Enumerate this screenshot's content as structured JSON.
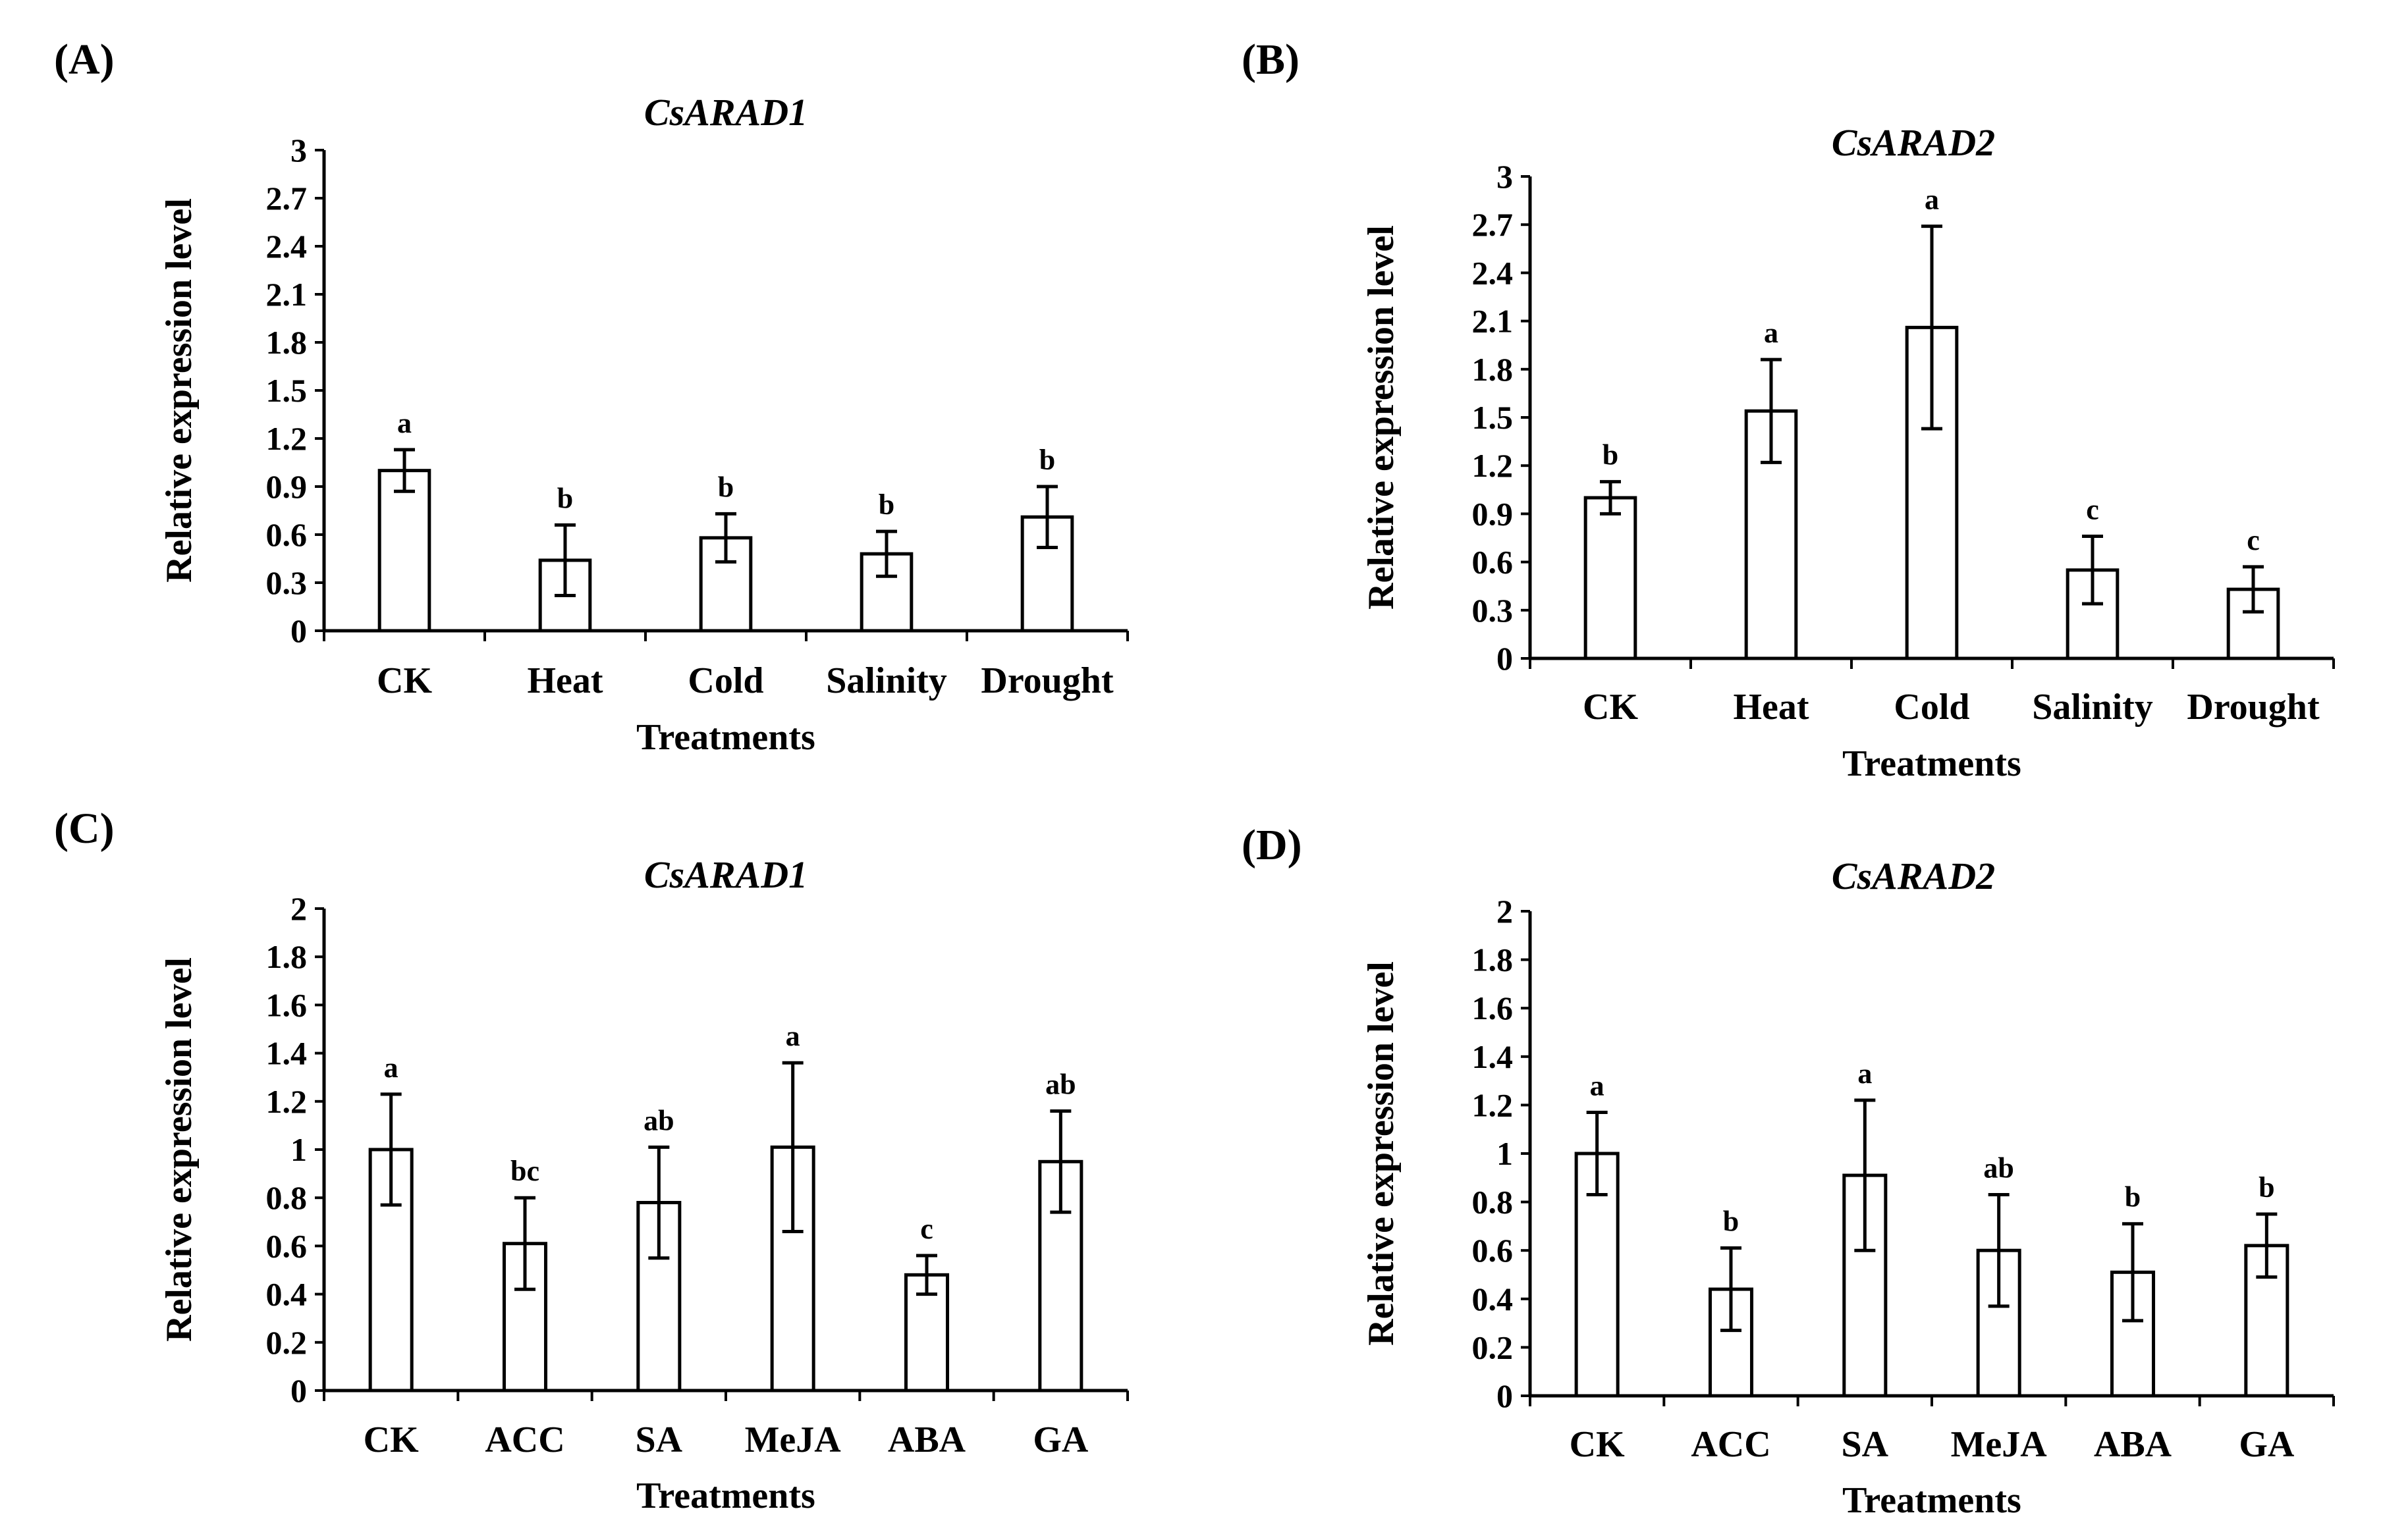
{
  "chart_data": [
    {
      "panel": "(A)",
      "type": "bar",
      "title": "CsARAD1",
      "xlabel": "Treatments",
      "ylabel": "Relative expression level",
      "categories": [
        "CK",
        "Heat",
        "Cold",
        "Salinity",
        "Drought"
      ],
      "values": [
        1.0,
        0.44,
        0.58,
        0.48,
        0.71
      ],
      "errors": [
        0.13,
        0.22,
        0.15,
        0.14,
        0.19
      ],
      "significance": [
        "a",
        "b",
        "b",
        "b",
        "b"
      ],
      "ylim": [
        0,
        3
      ],
      "yticks": [
        "0",
        "0.3",
        "0.6",
        "0.9",
        "1.2",
        "1.5",
        "1.8",
        "2.1",
        "2.4",
        "2.7",
        "3"
      ]
    },
    {
      "panel": "(B)",
      "type": "bar",
      "title": "CsARAD2",
      "xlabel": "Treatments",
      "ylabel": "Relative expression level",
      "categories": [
        "CK",
        "Heat",
        "Cold",
        "Salinity",
        "Drought"
      ],
      "values": [
        1.0,
        1.54,
        2.06,
        0.55,
        0.43
      ],
      "errors": [
        0.1,
        0.32,
        0.63,
        0.21,
        0.14
      ],
      "significance": [
        "b",
        "a",
        "a",
        "c",
        "c"
      ],
      "ylim": [
        0,
        3
      ],
      "yticks": [
        "0",
        "0.3",
        "0.6",
        "0.9",
        "1.2",
        "1.5",
        "1.8",
        "2.1",
        "2.4",
        "2.7",
        "3"
      ]
    },
    {
      "panel": "(C)",
      "type": "bar",
      "title": "CsARAD1",
      "xlabel": "Treatments",
      "ylabel": "Relative expression level",
      "categories": [
        "CK",
        "ACC",
        "SA",
        "MeJA",
        "ABA",
        "GA"
      ],
      "values": [
        1.0,
        0.61,
        0.78,
        1.01,
        0.48,
        0.95
      ],
      "errors": [
        0.23,
        0.19,
        0.23,
        0.35,
        0.08,
        0.21
      ],
      "significance": [
        "a",
        "bc",
        "ab",
        "a",
        "c",
        "ab"
      ],
      "ylim": [
        0,
        2
      ],
      "yticks": [
        "0",
        "0.2",
        "0.4",
        "0.6",
        "0.8",
        "1",
        "1.2",
        "1.4",
        "1.6",
        "1.8",
        "2"
      ]
    },
    {
      "panel": "(D)",
      "type": "bar",
      "title": "CsARAD2",
      "xlabel": "Treatments",
      "ylabel": "Relative expression level",
      "categories": [
        "CK",
        "ACC",
        "SA",
        "MeJA",
        "ABA",
        "GA"
      ],
      "values": [
        1.0,
        0.44,
        0.91,
        0.6,
        0.51,
        0.62
      ],
      "errors": [
        0.17,
        0.17,
        0.31,
        0.23,
        0.2,
        0.13
      ],
      "significance": [
        "a",
        "b",
        "a",
        "ab",
        "b",
        "b"
      ],
      "ylim": [
        0,
        2
      ],
      "yticks": [
        "0",
        "0.2",
        "0.4",
        "0.6",
        "0.8",
        "1",
        "1.2",
        "1.4",
        "1.6",
        "1.8",
        "2"
      ]
    }
  ]
}
